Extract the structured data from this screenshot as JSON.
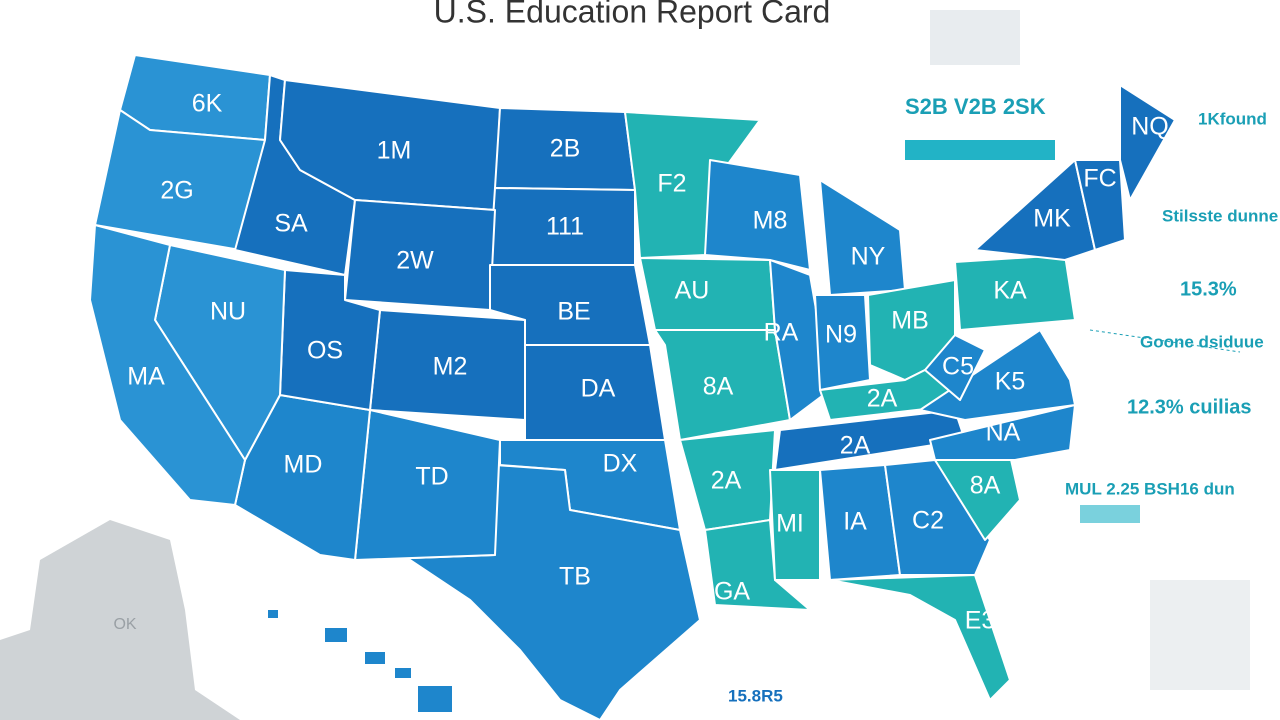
{
  "title": "U.S. Education Report Card",
  "state_labels": [
    "6K",
    "2G",
    "SA",
    "1M",
    "2B",
    "111",
    "2W",
    "BE",
    "M2",
    "DA",
    "DX",
    "TB",
    "TD",
    "MD",
    "OS",
    "NU",
    "MA",
    "F2",
    "AU",
    "8A",
    "2A",
    "GA",
    "M8",
    "RA",
    "NY",
    "N9",
    "MB",
    "2A",
    "2A",
    "MI",
    "IA",
    "C2",
    "E3",
    "8A",
    "NA",
    "K5",
    "C5",
    "KA",
    "MK",
    "FC",
    "NQ"
  ],
  "alaska_label": "OK",
  "annotations": [
    "S2B V2B 2SK",
    "1Kfound",
    "Stilsste dunne",
    "15.3%",
    "Goone dsiduue",
    "12.3% cuilias",
    "MUL 2.25 BSH16 dun",
    "15.8R5"
  ]
}
